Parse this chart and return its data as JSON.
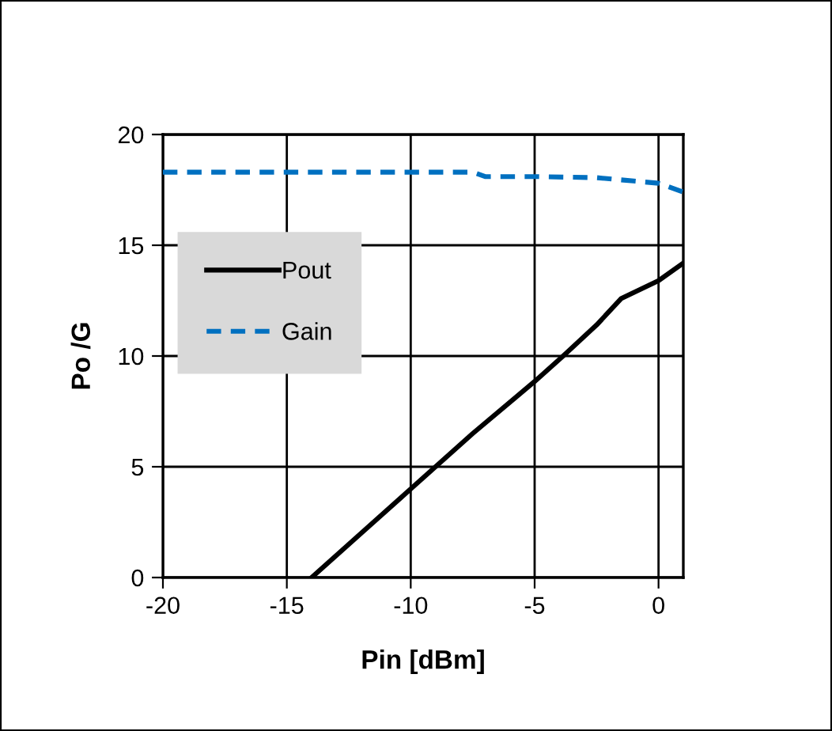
{
  "chart_data": {
    "type": "line",
    "xlabel": "Pin [dBm]",
    "ylabel": "Po /G",
    "xlim": [
      -20,
      1
    ],
    "ylim": [
      0,
      20
    ],
    "xticks": [
      -20,
      -15,
      -10,
      -5,
      0
    ],
    "yticks": [
      0,
      5,
      10,
      15,
      20
    ],
    "grid": true,
    "legend": "left",
    "series": [
      {
        "name": "Pout",
        "color": "#000000",
        "line_style": "solid",
        "x": [
          -14,
          -12,
          -10,
          -7.5,
          -5,
          -3.85,
          -2.5,
          -1.5,
          0,
          1
        ],
        "values": [
          0,
          2,
          4,
          6.5,
          8.85,
          10,
          11.4,
          12.6,
          13.4,
          14.2
        ]
      },
      {
        "name": "Gain",
        "color": "#0070c0",
        "line_style": "dashed",
        "x": [
          -20,
          -15,
          -10,
          -7.5,
          -7,
          -5,
          -2.5,
          -1,
          0,
          1
        ],
        "values": [
          18.3,
          18.3,
          18.3,
          18.3,
          18.1,
          18.1,
          18.05,
          17.9,
          17.8,
          17.4
        ]
      }
    ]
  }
}
